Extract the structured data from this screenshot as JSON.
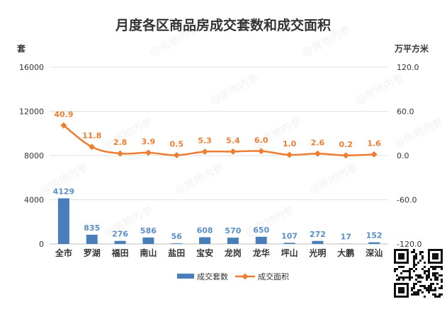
{
  "chart_data": {
    "type": "bar+line",
    "title": "月度各区商品房成交套数和成交面积",
    "categories": [
      "全市",
      "罗湖",
      "福田",
      "南山",
      "盐田",
      "宝安",
      "龙岗",
      "龙华",
      "坪山",
      "光明",
      "大鹏",
      "深汕"
    ],
    "y_left": {
      "label": "套",
      "min": 0,
      "max": 16000,
      "ticks": [
        "0",
        "4000",
        "8000",
        "12000",
        "16000"
      ]
    },
    "y_right": {
      "label": "万平方米",
      "min": -120.0,
      "max": 120.0,
      "ticks": [
        "-120.0",
        "-60.0",
        "0.0",
        "60.0",
        "120.0"
      ]
    },
    "series": [
      {
        "name": "成交套数",
        "type": "bar",
        "axis": "left",
        "color": "#4a7ebb",
        "values": [
          4129,
          835,
          276,
          586,
          56,
          608,
          570,
          650,
          107,
          272,
          17,
          152
        ],
        "labels": [
          "4129",
          "835",
          "276",
          "586",
          "56",
          "608",
          "570",
          "650",
          "107",
          "272",
          "17",
          "152"
        ]
      },
      {
        "name": "成交面积",
        "type": "line",
        "axis": "right",
        "color": "#ed7d31",
        "values": [
          40.9,
          11.8,
          2.8,
          3.9,
          0.5,
          5.3,
          5.4,
          6.0,
          1.0,
          2.6,
          0.2,
          1.6
        ],
        "labels": [
          "40.9",
          "11.8",
          "2.8",
          "3.9",
          "0.5",
          "5.3",
          "5.4",
          "6.0",
          "1.0",
          "2.6",
          "0.2",
          "1.6"
        ]
      }
    ],
    "legend": [
      "成交套数",
      "成交面积"
    ],
    "legend_position": "bottom",
    "watermark": "@房地内参",
    "grid": true
  }
}
